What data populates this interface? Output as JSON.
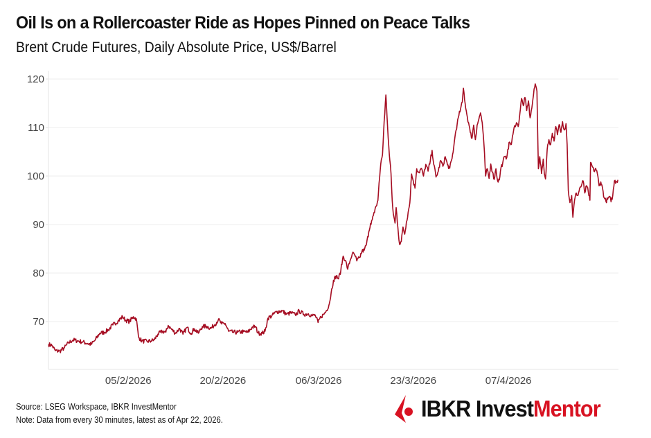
{
  "header": {
    "title": "Oil Is on a Rollercoaster Ride as Hopes Pinned on Peace Talks",
    "subtitle": "Brent Crude Futures, Daily Absolute Price, US$/Barrel"
  },
  "footer": {
    "source": "Source: LSEG Workspace, IBKR InvestMentor",
    "note": "Note: Data from every 30 minutes, latest as of Apr 22, 2026."
  },
  "logo": {
    "brand": "IBKR Invest",
    "brand_accent": "Mentor",
    "icon": "ibkr-flag-icon",
    "accent_color": "#d81222"
  },
  "chart_data": {
    "type": "line",
    "title": "Oil Is on a Rollercoaster Ride as Hopes Pinned on Peace Talks",
    "subtitle": "Brent Crude Futures, Daily Absolute Price, US$/Barrel",
    "xlabel": "",
    "ylabel": "US$/Barrel",
    "grid": true,
    "legend": "none",
    "line_color": "#a50d22",
    "ylim": [
      60,
      121.5
    ],
    "yticks": [
      70,
      80,
      90,
      100,
      110,
      120
    ],
    "xlim": [
      0,
      100
    ],
    "x_unit": "trading-time index (0 = ~23 Jan 2026, 100 = 22 Apr 2026)",
    "xticks": [
      {
        "x": 14.0,
        "label": "05/2/2026"
      },
      {
        "x": 30.6,
        "label": "20/2/2026"
      },
      {
        "x": 47.4,
        "label": "06/3/2026"
      },
      {
        "x": 64.0,
        "label": "23/3/2026"
      },
      {
        "x": 80.7,
        "label": "07/4/2026"
      }
    ],
    "series": [
      {
        "name": "Brent Crude Futures",
        "points": [
          [
            0.0,
            65.3
          ],
          [
            0.6,
            65.1
          ],
          [
            1.2,
            64.0
          ],
          [
            2.0,
            63.9
          ],
          [
            2.8,
            64.6
          ],
          [
            3.5,
            65.6
          ],
          [
            4.3,
            66.2
          ],
          [
            5.2,
            66.0
          ],
          [
            6.0,
            65.8
          ],
          [
            6.8,
            65.5
          ],
          [
            7.5,
            65.3
          ],
          [
            8.2,
            66.2
          ],
          [
            9.0,
            67.6
          ],
          [
            9.8,
            67.8
          ],
          [
            10.5,
            68.3
          ],
          [
            11.3,
            69.3
          ],
          [
            12.2,
            70.1
          ],
          [
            13.0,
            71.0
          ],
          [
            13.5,
            70.3
          ],
          [
            14.2,
            70.0
          ],
          [
            14.9,
            71.0
          ],
          [
            15.4,
            70.6
          ],
          [
            15.8,
            66.8
          ],
          [
            16.4,
            66.0
          ],
          [
            17.3,
            65.9
          ],
          [
            18.0,
            66.0
          ],
          [
            18.6,
            66.3
          ],
          [
            19.2,
            67.4
          ],
          [
            20.0,
            68.0
          ],
          [
            20.6,
            67.8
          ],
          [
            21.0,
            69.2
          ],
          [
            21.6,
            68.4
          ],
          [
            22.3,
            67.6
          ],
          [
            23.0,
            68.6
          ],
          [
            23.6,
            67.4
          ],
          [
            24.3,
            68.8
          ],
          [
            25.0,
            67.6
          ],
          [
            25.6,
            68.5
          ],
          [
            26.3,
            67.6
          ],
          [
            27.0,
            69.0
          ],
          [
            27.8,
            69.0
          ],
          [
            28.5,
            68.6
          ],
          [
            29.2,
            69.4
          ],
          [
            29.8,
            70.4
          ],
          [
            30.4,
            69.5
          ],
          [
            31.0,
            69.6
          ],
          [
            31.6,
            68.0
          ],
          [
            32.3,
            67.8
          ],
          [
            33.2,
            67.8
          ],
          [
            34.2,
            67.9
          ],
          [
            35.0,
            67.8
          ],
          [
            35.7,
            68.8
          ],
          [
            36.3,
            69.0
          ],
          [
            36.8,
            67.6
          ],
          [
            37.5,
            67.6
          ],
          [
            38.0,
            68.0
          ],
          [
            38.5,
            70.7
          ],
          [
            39.2,
            71.2
          ],
          [
            40.0,
            72.0
          ],
          [
            41.0,
            72.2
          ],
          [
            41.8,
            71.5
          ],
          [
            42.6,
            71.8
          ],
          [
            43.3,
            71.4
          ],
          [
            44.0,
            72.2
          ],
          [
            44.8,
            71.5
          ],
          [
            45.6,
            71.6
          ],
          [
            46.3,
            71.2
          ],
          [
            46.8,
            71.3
          ],
          [
            47.3,
            69.8
          ],
          [
            47.8,
            71.0
          ],
          [
            48.3,
            71.5
          ],
          [
            48.8,
            72.3
          ],
          [
            49.3,
            73.8
          ],
          [
            49.6,
            76.0
          ],
          [
            50.0,
            78.5
          ],
          [
            50.5,
            79.4
          ],
          [
            50.9,
            78.8
          ],
          [
            51.3,
            80.6
          ],
          [
            51.7,
            83.5
          ],
          [
            52.1,
            82.6
          ],
          [
            52.5,
            80.8
          ],
          [
            52.9,
            82.5
          ],
          [
            53.3,
            84.0
          ],
          [
            53.7,
            83.8
          ],
          [
            54.1,
            82.5
          ],
          [
            54.6,
            83.2
          ],
          [
            55.0,
            84.5
          ],
          [
            55.4,
            84.7
          ],
          [
            55.8,
            86.0
          ],
          [
            56.2,
            88.5
          ],
          [
            56.5,
            90.2
          ],
          [
            56.8,
            91.0
          ],
          [
            57.2,
            92.5
          ],
          [
            57.5,
            93.8
          ],
          [
            57.8,
            95.0
          ],
          [
            58.0,
            98.5
          ],
          [
            58.3,
            102.5
          ],
          [
            58.6,
            104.4
          ],
          [
            58.9,
            111.3
          ],
          [
            59.2,
            116.7
          ],
          [
            59.5,
            110.0
          ],
          [
            59.8,
            104.3
          ],
          [
            60.1,
            100.5
          ],
          [
            60.3,
            95.0
          ],
          [
            60.5,
            92.2
          ],
          [
            60.8,
            90.3
          ],
          [
            61.0,
            93.5
          ],
          [
            61.3,
            89.4
          ],
          [
            61.6,
            85.9
          ],
          [
            61.9,
            86.5
          ],
          [
            62.2,
            89.5
          ],
          [
            62.5,
            88.0
          ],
          [
            62.8,
            90.5
          ],
          [
            63.1,
            92.5
          ],
          [
            63.4,
            94.5
          ],
          [
            63.7,
            100.4
          ],
          [
            64.0,
            99.0
          ],
          [
            64.3,
            97.5
          ],
          [
            64.6,
            101.5
          ],
          [
            65.0,
            100.7
          ],
          [
            65.4,
            101.6
          ],
          [
            65.8,
            100.0
          ],
          [
            66.2,
            102.4
          ],
          [
            66.6,
            101.0
          ],
          [
            67.0,
            103.2
          ],
          [
            67.3,
            105.3
          ],
          [
            67.6,
            102.4
          ],
          [
            68.0,
            99.8
          ],
          [
            68.4,
            101.0
          ],
          [
            68.8,
            103.2
          ],
          [
            69.2,
            102.0
          ],
          [
            69.6,
            104.0
          ],
          [
            70.0,
            102.3
          ],
          [
            70.4,
            101.6
          ],
          [
            70.8,
            103.6
          ],
          [
            71.1,
            106.0
          ],
          [
            71.4,
            108.8
          ],
          [
            71.7,
            110.7
          ],
          [
            72.0,
            112.5
          ],
          [
            72.3,
            113.8
          ],
          [
            72.6,
            115.2
          ],
          [
            72.8,
            118.1
          ],
          [
            73.1,
            115.0
          ],
          [
            73.4,
            112.7
          ],
          [
            73.7,
            111.0
          ],
          [
            74.0,
            109.0
          ],
          [
            74.3,
            107.8
          ],
          [
            74.6,
            110.5
          ],
          [
            74.9,
            107.5
          ],
          [
            75.2,
            110.5
          ],
          [
            75.5,
            111.7
          ],
          [
            75.8,
            113.0
          ],
          [
            76.1,
            111.0
          ],
          [
            76.4,
            106.5
          ],
          [
            76.7,
            100.0
          ],
          [
            77.0,
            101.5
          ],
          [
            77.3,
            99.5
          ],
          [
            77.6,
            102.5
          ],
          [
            77.9,
            100.8
          ],
          [
            78.2,
            99.3
          ],
          [
            78.5,
            101.5
          ],
          [
            78.8,
            99.0
          ],
          [
            79.1,
            99.2
          ],
          [
            79.4,
            101.8
          ],
          [
            79.7,
            102.7
          ],
          [
            80.0,
            104.0
          ],
          [
            80.3,
            103.5
          ],
          [
            80.6,
            105.5
          ],
          [
            80.9,
            107.0
          ],
          [
            81.2,
            106.5
          ],
          [
            81.5,
            108.6
          ],
          [
            81.8,
            110.4
          ],
          [
            82.1,
            111.0
          ],
          [
            82.4,
            110.2
          ],
          [
            82.7,
            112.8
          ],
          [
            83.0,
            116.0
          ],
          [
            83.3,
            114.5
          ],
          [
            83.6,
            116.2
          ],
          [
            83.9,
            113.5
          ],
          [
            84.2,
            115.5
          ],
          [
            84.5,
            112.0
          ],
          [
            84.8,
            114.0
          ],
          [
            85.1,
            116.8
          ],
          [
            85.4,
            119.0
          ],
          [
            85.7,
            117.5
          ],
          [
            85.95,
            101.5
          ],
          [
            86.2,
            104.0
          ],
          [
            86.5,
            100.5
          ],
          [
            86.8,
            103.5
          ],
          [
            87.0,
            100.5
          ],
          [
            87.2,
            99.4
          ],
          [
            87.5,
            105.5
          ],
          [
            87.8,
            107.5
          ],
          [
            88.1,
            106.5
          ],
          [
            88.4,
            108.8
          ],
          [
            88.7,
            107.2
          ],
          [
            89.0,
            110.2
          ],
          [
            89.3,
            108.5
          ],
          [
            89.6,
            110.6
          ],
          [
            89.9,
            109.0
          ],
          [
            90.2,
            111.2
          ],
          [
            90.5,
            109.5
          ],
          [
            90.8,
            110.8
          ],
          [
            91.0,
            106.5
          ],
          [
            91.2,
            97.0
          ],
          [
            91.5,
            94.5
          ],
          [
            91.8,
            96.0
          ],
          [
            92.0,
            91.5
          ],
          [
            92.3,
            95.0
          ],
          [
            92.6,
            96.5
          ],
          [
            92.9,
            96.0
          ],
          [
            93.2,
            97.5
          ],
          [
            93.5,
            98.0
          ],
          [
            93.8,
            99.0
          ],
          [
            94.1,
            96.5
          ],
          [
            94.4,
            98.0
          ],
          [
            94.7,
            96.8
          ],
          [
            95.0,
            95.0
          ],
          [
            95.1,
            102.8
          ],
          [
            95.4,
            102.0
          ],
          [
            95.7,
            101.0
          ],
          [
            96.0,
            101.6
          ],
          [
            96.3,
            100.5
          ],
          [
            96.6,
            98.0
          ],
          [
            96.9,
            98.8
          ],
          [
            97.2,
            97.5
          ],
          [
            97.5,
            95.5
          ],
          [
            97.8,
            94.8
          ],
          [
            98.1,
            95.2
          ],
          [
            98.4,
            95.8
          ],
          [
            98.7,
            94.7
          ],
          [
            99.0,
            96.0
          ],
          [
            99.3,
            99.0
          ],
          [
            99.6,
            98.8
          ],
          [
            99.9,
            99.2
          ]
        ]
      }
    ]
  }
}
